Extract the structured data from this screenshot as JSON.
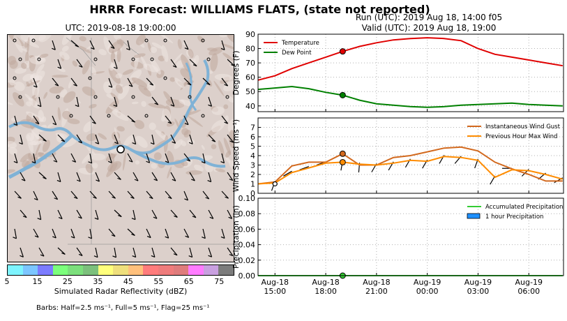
{
  "title": "HRRR Forecast: WILLIAMS FLATS, (state not reported)",
  "run_line": "Run (UTC): 2019 Aug 18, 14:00 f05",
  "valid_line": "Valid (UTC): 2019 Aug 18, 19:00",
  "map": {
    "title": "UTC: 2019-08-18 19:00:00",
    "colorbar_label": "Simulated Radar Reflectivity (dBZ)",
    "colorbar_ticks": [
      "5",
      "15",
      "25",
      "35",
      "45",
      "55",
      "65",
      "75"
    ],
    "colorbar_colors": [
      "#7ef4ff",
      "#7cc6ff",
      "#7c7cff",
      "#7cff7c",
      "#7cdf7c",
      "#7cc07c",
      "#ffff7c",
      "#efdf7c",
      "#ffc07c",
      "#ff7c7c",
      "#ef7c7c",
      "#df7c7c",
      "#ff7cff",
      "#c9a0e0",
      "#7c7c7c"
    ],
    "barbs_note": "Barbs: Half=2.5 ms⁻¹, Full=5 ms⁻¹, Flag=25 ms⁻¹"
  },
  "colors": {
    "temperature": "#e00000",
    "dew_point": "#008000",
    "wind_gust": "#d2691e",
    "max_wind": "#ff8c00",
    "accum_precip": "#33cc33",
    "hourly_precip": "#1e90ff"
  },
  "chart_data": [
    {
      "type": "line",
      "ylabel": "Degrees (F)",
      "ylim": [
        36,
        90
      ],
      "yticks": [
        "40",
        "50",
        "60",
        "70",
        "80",
        "90"
      ],
      "grid": true,
      "legend": "top-left",
      "x": [
        "Aug-18 14:00",
        "Aug-18 15:00",
        "Aug-18 16:00",
        "Aug-18 17:00",
        "Aug-18 18:00",
        "Aug-18 19:00",
        "Aug-18 20:00",
        "Aug-18 21:00",
        "Aug-18 22:00",
        "Aug-18 23:00",
        "Aug-19 00:00",
        "Aug-19 01:00",
        "Aug-19 02:00",
        "Aug-19 03:00",
        "Aug-19 04:00",
        "Aug-19 05:00",
        "Aug-19 06:00",
        "Aug-19 07:00",
        "Aug-19 08:00"
      ],
      "series": [
        {
          "name": "Temperature",
          "values": [
            58,
            61,
            66,
            70,
            74,
            78,
            81.5,
            84,
            86,
            87,
            87.5,
            87,
            85.5,
            80,
            76,
            74,
            72,
            70,
            68
          ]
        },
        {
          "name": "Dew Point",
          "values": [
            51.5,
            52.5,
            53.5,
            52,
            49.5,
            47.5,
            44,
            41.5,
            40.5,
            39.5,
            39,
            39.5,
            40.5,
            41,
            41.5,
            42,
            41,
            40.5,
            40
          ]
        }
      ],
      "highlight_index": 5
    },
    {
      "type": "line",
      "ylabel": "Wind Speed (ms⁻¹)",
      "ylim": [
        0,
        8
      ],
      "yticks": [
        "0",
        "1",
        "2",
        "3",
        "4",
        "5",
        "6",
        "7"
      ],
      "grid": true,
      "legend": "top-right",
      "x": [
        "Aug-18 14:00",
        "Aug-18 15:00",
        "Aug-18 16:00",
        "Aug-18 17:00",
        "Aug-18 18:00",
        "Aug-18 19:00",
        "Aug-18 20:00",
        "Aug-18 21:00",
        "Aug-18 22:00",
        "Aug-18 23:00",
        "Aug-19 00:00",
        "Aug-19 01:00",
        "Aug-19 02:00",
        "Aug-19 03:00",
        "Aug-19 04:00",
        "Aug-19 05:00",
        "Aug-19 06:00",
        "Aug-19 07:00",
        "Aug-19 08:00"
      ],
      "series": [
        {
          "name": "Instantaneous Wind Gust",
          "values": [
            1.0,
            1.2,
            2.9,
            3.3,
            3.3,
            4.2,
            3.0,
            3.0,
            3.8,
            4.0,
            4.4,
            4.8,
            4.9,
            4.5,
            3.3,
            2.6,
            2.0,
            1.3,
            1.3
          ]
        },
        {
          "name": "Previous Hour Max Wind",
          "values": [
            1.0,
            1.1,
            2.2,
            2.7,
            3.2,
            3.3,
            3.1,
            3.0,
            3.2,
            3.5,
            3.4,
            3.9,
            3.8,
            3.5,
            1.7,
            2.5,
            2.4,
            2.0,
            1.5
          ]
        }
      ],
      "highlight_index": 5
    },
    {
      "type": "line",
      "ylabel": "Precipitation (in)",
      "ylim": [
        0,
        0.1
      ],
      "yticks": [
        "0.00",
        "0.02",
        "0.04",
        "0.06",
        "0.08",
        "0.10"
      ],
      "grid": true,
      "legend": "top-right",
      "xtick_labels": [
        [
          "Aug-18",
          "15:00"
        ],
        [
          "Aug-18",
          "18:00"
        ],
        [
          "Aug-18",
          "21:00"
        ],
        [
          "Aug-19",
          "00:00"
        ],
        [
          "Aug-19",
          "03:00"
        ],
        [
          "Aug-19",
          "06:00"
        ]
      ],
      "xtick_hours": [
        1,
        4,
        7,
        10,
        13,
        16
      ],
      "x": [
        "Aug-18 14:00",
        "Aug-18 15:00",
        "Aug-18 16:00",
        "Aug-18 17:00",
        "Aug-18 18:00",
        "Aug-18 19:00",
        "Aug-18 20:00",
        "Aug-18 21:00",
        "Aug-18 22:00",
        "Aug-18 23:00",
        "Aug-19 00:00",
        "Aug-19 01:00",
        "Aug-19 02:00",
        "Aug-19 03:00",
        "Aug-19 04:00",
        "Aug-19 05:00",
        "Aug-19 06:00",
        "Aug-19 07:00",
        "Aug-19 08:00"
      ],
      "series": [
        {
          "name": "Accumulated Precipitation",
          "values": [
            0,
            0,
            0,
            0,
            0,
            0,
            0,
            0,
            0,
            0,
            0,
            0,
            0,
            0,
            0,
            0,
            0,
            0,
            0
          ]
        },
        {
          "name": "1 hour Precipitation",
          "values": [
            0,
            0,
            0,
            0,
            0,
            0,
            0,
            0,
            0,
            0,
            0,
            0,
            0,
            0,
            0,
            0,
            0,
            0,
            0
          ]
        }
      ],
      "highlight_index": 5
    }
  ]
}
